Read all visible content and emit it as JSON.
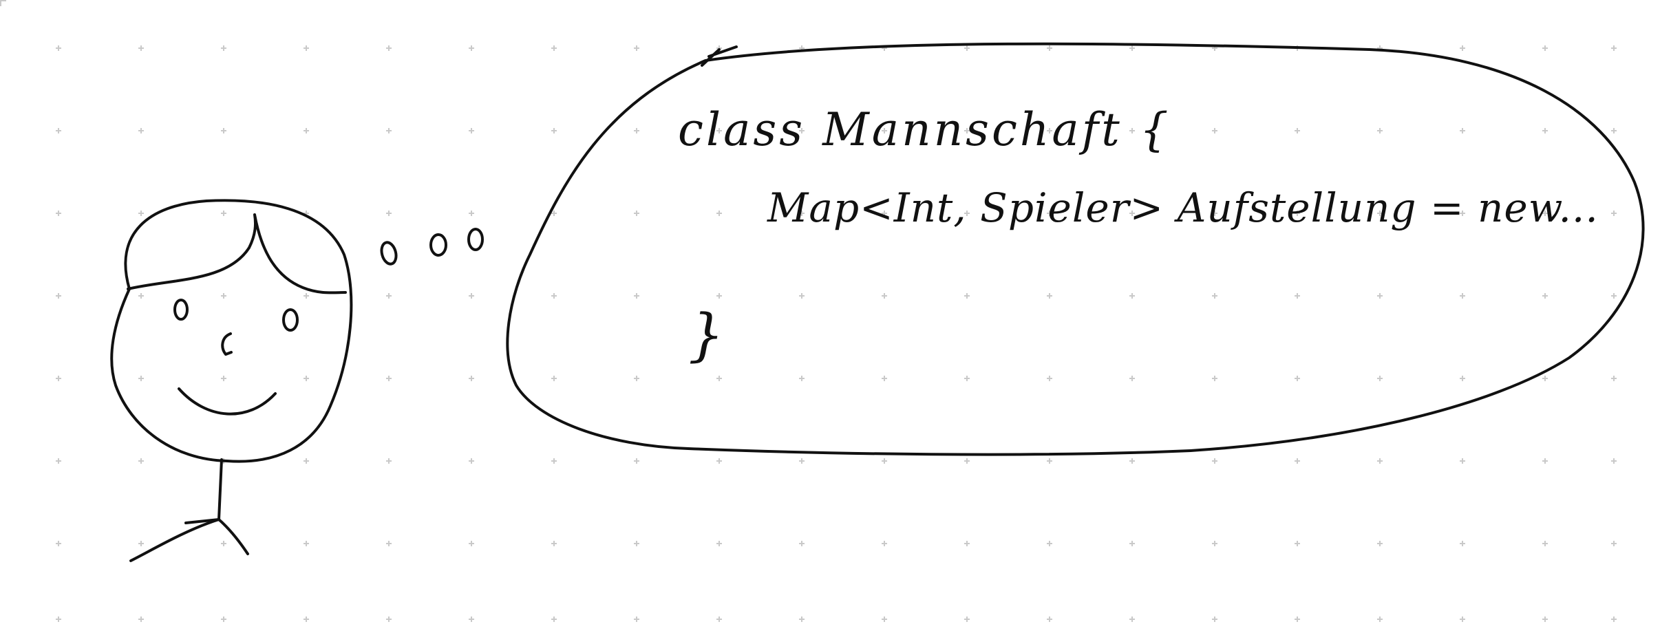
{
  "colors": {
    "ink": "#111111",
    "paper": "#ffffff",
    "dots": "#c9c9c9"
  },
  "thought_bubble": {
    "code_lines": [
      "class Mannschaft {",
      "Map<Int, Spieler> Aufstellung = new...",
      "}"
    ]
  }
}
